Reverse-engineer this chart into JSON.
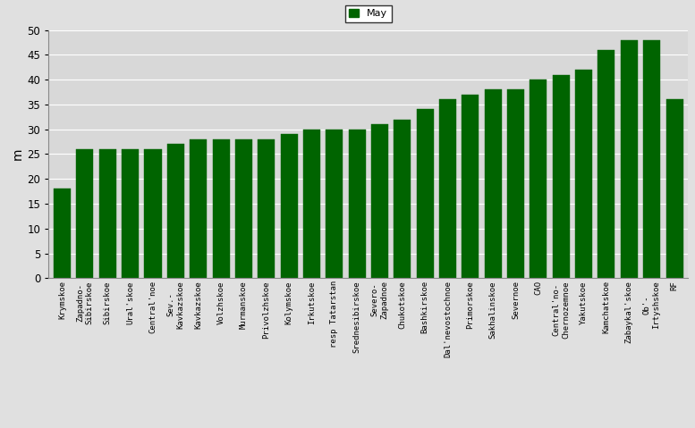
{
  "categories": [
    "Krymskoe",
    "Zapadno-\nSibirskoe",
    "Sibirskoe",
    "Ural'skoe",
    "Central'noe",
    "Sev.-\nKavkazskoe",
    "Kavkazskoe",
    "Volzhskoe",
    "Murmanskoe",
    "Privolzhskoe",
    "Kolymskoe",
    "Irkutskoe",
    "resp Tatarstan",
    "Srednesibirskoe",
    "Severo-\nZapadnoe",
    "Chukotskoe",
    "Bashkirskoe",
    "Dal'nevostochnoe",
    "Primorskoe",
    "Sakhalinskoe",
    "Severnoe",
    "CAO",
    "Central'no-\nChernozemnoe",
    "Yakutskoe",
    "Kamchatskoe",
    "Zabaykal'skoe",
    "Ob'-\nIrtyshskoe",
    "RF"
  ],
  "values": [
    18,
    26,
    26,
    26,
    26,
    27,
    28,
    28,
    28,
    28,
    29,
    30,
    30,
    30,
    31,
    32,
    34,
    36,
    37,
    38,
    38,
    40,
    41,
    42,
    46,
    48,
    48,
    36
  ],
  "bar_color": "#006400",
  "ylabel": "m",
  "ylim": [
    0,
    50
  ],
  "yticks": [
    0,
    5,
    10,
    15,
    20,
    25,
    30,
    35,
    40,
    45,
    50
  ],
  "legend_label": "May",
  "legend_color": "#006400",
  "fig_facecolor": "#e0e0e0",
  "axes_facecolor": "#d8d8d8",
  "grid_color": "white",
  "bar_width": 0.75
}
